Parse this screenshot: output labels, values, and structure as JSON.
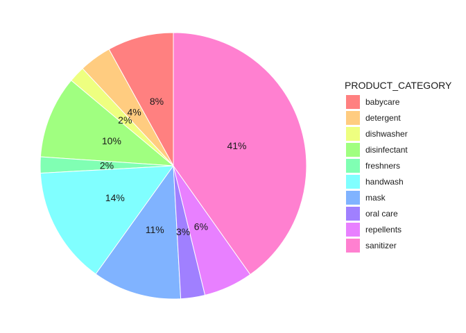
{
  "chart_data": {
    "type": "pie",
    "legend_title": "PRODUCT_CATEGORY",
    "legend_position": "right",
    "categories": [
      "babycare",
      "detergent",
      "dishwasher",
      "disinfectant",
      "freshners",
      "handwash",
      "mask",
      "oral care",
      "repellents",
      "sanitizer"
    ],
    "values": [
      8.2,
      4.0,
      2.0,
      10.2,
      2.0,
      14.5,
      11.0,
      3.0,
      6.1,
      41.0
    ],
    "labels": [
      "8%",
      "4%",
      "2%",
      "10%",
      "2%",
      "14%",
      "11%",
      "3%",
      "6%",
      "41%"
    ],
    "colors": [
      "#FF8080",
      "#FFCC80",
      "#EEFF80",
      "#A0FF80",
      "#80FFB3",
      "#80FFFF",
      "#80B3FF",
      "#A080FF",
      "#E880FF",
      "#FF80D0"
    ],
    "start": "12 o'clock",
    "direction": "counterclockwise"
  }
}
